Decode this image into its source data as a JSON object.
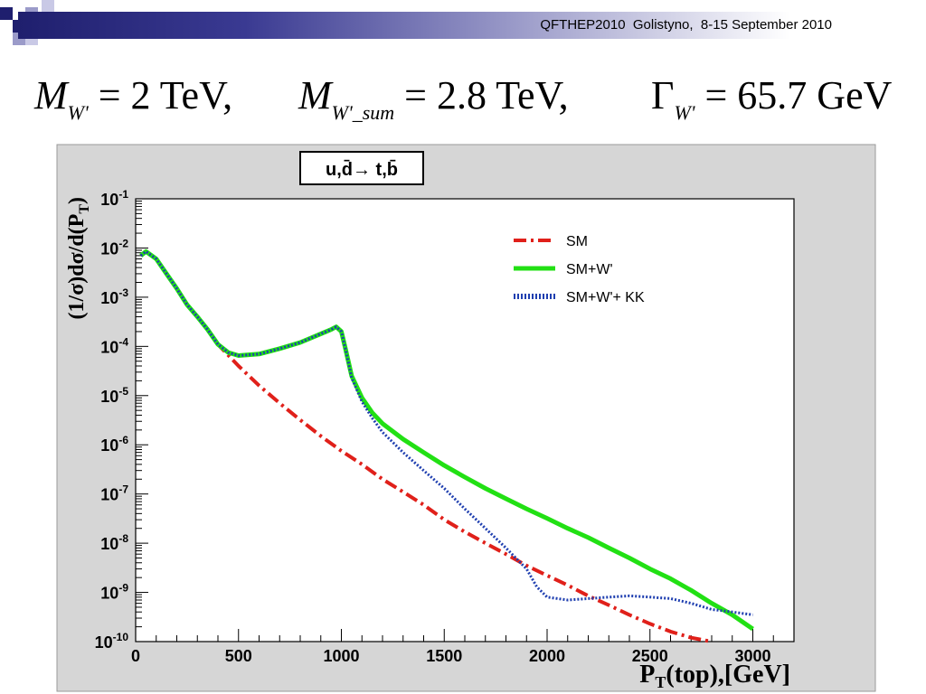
{
  "header": {
    "conference": "QFTHEP2010  Golistyno,  8-15 September 2010"
  },
  "formulas": [
    {
      "symbol": "M",
      "subscript": "W'",
      "equals": "= 2",
      "unit": "TeV,"
    },
    {
      "symbol": "M",
      "subscript": "W'_sum",
      "equals": "= 2.8",
      "unit": "TeV,"
    },
    {
      "symbol": "Γ",
      "subscript": "W'",
      "equals": "= 65.7",
      "unit": "GeV"
    }
  ],
  "colors": {
    "sm": "#e0201a",
    "sm_wp": "#22e014",
    "sm_wp_kk": "#1f3fb0",
    "frame_bg": "#d6d6d6"
  },
  "chart_data": {
    "type": "line",
    "title": "u,d̄→ t,b̄",
    "xlabel": "P_T(top),[GeV]",
    "ylabel": "(1/σ)dσ/d(P_T)",
    "xlim": [
      0,
      3200
    ],
    "ylim": [
      1e-10,
      0.1
    ],
    "yscale": "log",
    "x_ticks": [
      "0",
      "500",
      "1000",
      "1500",
      "2000",
      "2500",
      "3000"
    ],
    "y_ticks": [
      "10^-10",
      "10^-9",
      "10^-8",
      "10^-7",
      "10^-6",
      "10^-5",
      "10^-4",
      "10^-3",
      "10^-2",
      "10^-1"
    ],
    "legend_position": "top-right",
    "series": [
      {
        "name": "SM",
        "x": [
          25,
          50,
          100,
          150,
          200,
          250,
          300,
          350,
          400,
          500,
          600,
          700,
          800,
          900,
          1000,
          1100,
          1200,
          1300,
          1400,
          1500,
          1600,
          1700,
          1800,
          1900,
          2000,
          2100,
          2200,
          2300,
          2400,
          2500,
          2600,
          2700,
          2800
        ],
        "y": [
          0.007,
          0.0085,
          0.006,
          0.003,
          0.0015,
          0.0007,
          0.0004,
          0.00022,
          0.00011,
          4e-05,
          1.6e-05,
          7e-06,
          3.2e-06,
          1.5e-06,
          7.5e-07,
          4e-07,
          2e-07,
          1.1e-07,
          6e-08,
          3e-08,
          1.7e-08,
          1e-08,
          6e-09,
          3.5e-09,
          2.2e-09,
          1.4e-09,
          8.5e-10,
          5.5e-10,
          3.5e-10,
          2.3e-10,
          1.6e-10,
          1.2e-10,
          1e-10
        ]
      },
      {
        "name": "SM+W'",
        "x": [
          25,
          50,
          100,
          150,
          200,
          250,
          300,
          350,
          400,
          450,
          500,
          600,
          700,
          800,
          900,
          950,
          975,
          1000,
          1020,
          1050,
          1100,
          1150,
          1200,
          1300,
          1400,
          1500,
          1600,
          1700,
          1800,
          1900,
          2000,
          2100,
          2200,
          2300,
          2400,
          2500,
          2600,
          2700,
          2800,
          2900,
          3000
        ],
        "y": [
          0.007,
          0.0085,
          0.006,
          0.003,
          0.0015,
          0.0007,
          0.0004,
          0.00022,
          0.00011,
          7.5e-05,
          6.5e-05,
          7e-05,
          9e-05,
          0.00012,
          0.00018,
          0.00022,
          0.00025,
          0.0002,
          9e-05,
          2.5e-05,
          9e-06,
          4.5e-06,
          2.7e-06,
          1.3e-06,
          7e-07,
          3.8e-07,
          2.2e-07,
          1.3e-07,
          8e-08,
          5e-08,
          3.2e-08,
          2e-08,
          1.3e-08,
          8e-09,
          5e-09,
          3e-09,
          1.9e-09,
          1.1e-09,
          6e-10,
          3.5e-10,
          1.8e-10
        ]
      },
      {
        "name": "SM+W'+ KK",
        "x": [
          25,
          50,
          100,
          150,
          200,
          250,
          300,
          350,
          400,
          450,
          500,
          600,
          700,
          800,
          900,
          950,
          975,
          1000,
          1020,
          1050,
          1100,
          1150,
          1200,
          1300,
          1400,
          1500,
          1600,
          1700,
          1800,
          1900,
          1950,
          2000,
          2100,
          2200,
          2300,
          2400,
          2500,
          2600,
          2700,
          2800,
          2900,
          3000
        ],
        "y": [
          0.007,
          0.0085,
          0.006,
          0.003,
          0.0015,
          0.0007,
          0.0004,
          0.00022,
          0.00011,
          7.5e-05,
          6.5e-05,
          7e-05,
          9e-05,
          0.00012,
          0.00018,
          0.00022,
          0.00025,
          0.0002,
          9e-05,
          2.3e-05,
          7.5e-06,
          3.5e-06,
          1.8e-06,
          7e-07,
          3e-07,
          1.3e-07,
          5e-08,
          2e-08,
          8e-09,
          3e-09,
          1.3e-09,
          8e-10,
          7e-10,
          7.5e-10,
          8e-10,
          8.5e-10,
          8e-10,
          7.5e-10,
          6e-10,
          4.5e-10,
          4e-10,
          3.5e-10
        ]
      }
    ]
  }
}
